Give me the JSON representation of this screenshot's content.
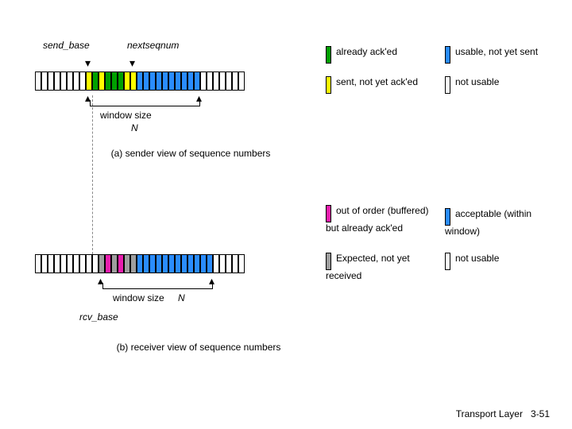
{
  "colors": {
    "yellow": "#ffff00",
    "green": "#00a000",
    "blue": "#2a8cff",
    "magenta": "#e81eae",
    "gray": "#9e9e9e",
    "white": "#ffffff",
    "border": "#000000"
  },
  "sender": {
    "label_send_base": "send_base",
    "label_nextseqnum": "nextseqnum",
    "window_label": "window size",
    "window_N": "N",
    "caption": "(a) sender view of sequence numbers",
    "cells": [
      "white",
      "white",
      "white",
      "white",
      "white",
      "white",
      "white",
      "white",
      "yellow",
      "green",
      "yellow",
      "green",
      "green",
      "green",
      "yellow",
      "yellow",
      "blue",
      "blue",
      "blue",
      "blue",
      "blue",
      "blue",
      "blue",
      "blue",
      "blue",
      "blue",
      "white",
      "white",
      "white",
      "white",
      "white",
      "white",
      "white"
    ],
    "arrow_base_idx": 8,
    "arrow_next_idx": 15,
    "window_from_idx": 8,
    "window_to_idx": 25,
    "legend": [
      {
        "key": "green",
        "text": "already ack'ed"
      },
      {
        "key": "yellow",
        "text": "sent, not yet ack'ed"
      },
      {
        "key": "blue",
        "text": "usable, not yet sent"
      },
      {
        "key": "white",
        "text": "not usable"
      }
    ]
  },
  "receiver": {
    "label_rcv_base": "rcv_base",
    "window_label": "window size",
    "window_N": "N",
    "caption": "(b) receiver view of sequence numbers",
    "cells": [
      "white",
      "white",
      "white",
      "white",
      "white",
      "white",
      "white",
      "white",
      "white",
      "white",
      "gray",
      "magenta",
      "gray",
      "magenta",
      "gray",
      "gray",
      "blue",
      "blue",
      "blue",
      "blue",
      "blue",
      "blue",
      "blue",
      "blue",
      "blue",
      "blue",
      "blue",
      "blue",
      "white",
      "white",
      "white",
      "white",
      "white"
    ],
    "arrow_base_idx": 10,
    "window_from_idx": 10,
    "window_to_idx": 27,
    "legend": [
      {
        "key": "magenta",
        "text": "out of order (buffered) but already ack'ed"
      },
      {
        "key": "gray",
        "text": "Expected, not yet received"
      },
      {
        "key": "blue",
        "text": "acceptable (within window)"
      },
      {
        "key": "white",
        "text": "not usable"
      }
    ]
  },
  "footer": {
    "layer": "Transport Layer",
    "page": "3-51"
  }
}
